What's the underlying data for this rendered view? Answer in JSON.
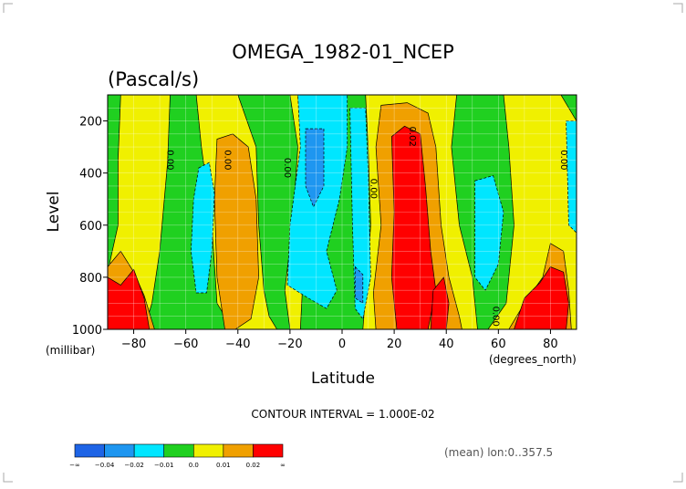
{
  "chart_data": {
    "type": "heatmap",
    "title": "OMEGA_1982-01_NCEP",
    "subtitle": "(Pascal/s)",
    "xlabel": "Latitude",
    "ylabel": "Level",
    "x_unit_label": "(degrees_north)",
    "y_unit_label": "(millibar)",
    "xlim": [
      -90,
      90
    ],
    "ylim": [
      1000,
      100
    ],
    "x_ticks": [
      -80,
      -60,
      -40,
      -20,
      0,
      20,
      40,
      60,
      80
    ],
    "y_ticks": [
      200,
      400,
      600,
      800,
      1000
    ],
    "grid": true,
    "contour_interval_text": "CONTOUR INTERVAL = 1.000E-02",
    "footnote": "(mean) lon:0..357.5",
    "colorbar": {
      "labels": [
        "-∞",
        "-0.04",
        "-0.02",
        "-0.01",
        "0.0",
        "0.01",
        "0.02",
        "∞"
      ],
      "colors": [
        "#1e64e6",
        "#1e96f0",
        "#00e6ff",
        "#20d020",
        "#f0f000",
        "#f0a000",
        "#ff0000"
      ]
    },
    "contour_labels": [
      {
        "text": "0.00",
        "x": -67,
        "y": 350
      },
      {
        "text": "0.00",
        "x": -45,
        "y": 350
      },
      {
        "text": "0.00",
        "x": -22,
        "y": 380
      },
      {
        "text": "0.00",
        "x": 11,
        "y": 460
      },
      {
        "text": "0.02",
        "x": 26,
        "y": 260
      },
      {
        "text": "0.00",
        "x": 84,
        "y": 350
      },
      {
        "text": "0.00",
        "x": 58,
        "y": 950
      }
    ],
    "regions": [
      {
        "level": "0.0",
        "color": "#20d020",
        "points": [
          [
            -90,
            100
          ],
          [
            90,
            100
          ],
          [
            90,
            1000
          ],
          [
            -90,
            1000
          ]
        ]
      },
      {
        "level": "0.01",
        "color": "#f0f000",
        "points": [
          [
            -85,
            100
          ],
          [
            -66,
            100
          ],
          [
            -67,
            360
          ],
          [
            -70,
            700
          ],
          [
            -73,
            900
          ],
          [
            -76,
            1000
          ],
          [
            -90,
            1000
          ],
          [
            -90,
            780
          ],
          [
            -86,
            600
          ],
          [
            -86,
            350
          ]
        ]
      },
      {
        "level": "0.01",
        "color": "#f0f000",
        "points": [
          [
            -56,
            100
          ],
          [
            -40,
            100
          ],
          [
            -33,
            300
          ],
          [
            -32,
            600
          ],
          [
            -30,
            850
          ],
          [
            -28,
            950
          ],
          [
            -25,
            1000
          ],
          [
            -42,
            1000
          ],
          [
            -48,
            900
          ],
          [
            -50,
            600
          ],
          [
            -54,
            300
          ]
        ]
      },
      {
        "level": "0.01",
        "color": "#f0f000",
        "points": [
          [
            -20,
            100
          ],
          [
            -17,
            300
          ],
          [
            -19,
            600
          ],
          [
            -22,
            850
          ],
          [
            -20,
            1000
          ],
          [
            -16,
            1000
          ],
          [
            -14,
            600
          ],
          [
            -15,
            300
          ],
          [
            -17,
            100
          ]
        ]
      },
      {
        "level": "0.01",
        "color": "#f0f000",
        "points": [
          [
            9,
            100
          ],
          [
            44,
            100
          ],
          [
            42,
            300
          ],
          [
            45,
            600
          ],
          [
            50,
            800
          ],
          [
            52,
            1000
          ],
          [
            8,
            1000
          ],
          [
            11,
            600
          ],
          [
            10,
            300
          ]
        ]
      },
      {
        "level": "0.01",
        "color": "#f0f000",
        "points": [
          [
            62,
            100
          ],
          [
            84,
            100
          ],
          [
            90,
            200
          ],
          [
            90,
            1000
          ],
          [
            56,
            1000
          ],
          [
            63,
            900
          ],
          [
            66,
            600
          ],
          [
            64,
            300
          ]
        ]
      },
      {
        "level": "0.02",
        "color": "#f0a000",
        "points": [
          [
            -90,
            760
          ],
          [
            -85,
            700
          ],
          [
            -80,
            780
          ],
          [
            -76,
            870
          ],
          [
            -72,
            1000
          ],
          [
            -90,
            1000
          ]
        ]
      },
      {
        "level": "0.02",
        "color": "#f0a000",
        "points": [
          [
            -48,
            270
          ],
          [
            -42,
            250
          ],
          [
            -36,
            300
          ],
          [
            -33,
            500
          ],
          [
            -32,
            800
          ],
          [
            -35,
            960
          ],
          [
            -41,
            1000
          ],
          [
            -45,
            1000
          ],
          [
            -48,
            800
          ],
          [
            -49,
            500
          ]
        ]
      },
      {
        "level": "0.02",
        "color": "#f0a000",
        "points": [
          [
            15,
            140
          ],
          [
            25,
            130
          ],
          [
            33,
            170
          ],
          [
            36,
            300
          ],
          [
            38,
            600
          ],
          [
            41,
            800
          ],
          [
            45,
            950
          ],
          [
            46,
            1000
          ],
          [
            13,
            1000
          ],
          [
            12,
            860
          ],
          [
            15,
            600
          ],
          [
            13,
            300
          ]
        ]
      },
      {
        "level": "0.02",
        "color": "#f0a000",
        "points": [
          [
            80,
            670
          ],
          [
            85,
            700
          ],
          [
            87,
            850
          ],
          [
            88,
            1000
          ],
          [
            64,
            1000
          ],
          [
            70,
            900
          ],
          [
            77,
            800
          ]
        ]
      },
      {
        "level": "0.03",
        "color": "#ff0000",
        "points": [
          [
            -90,
            800
          ],
          [
            -85,
            830
          ],
          [
            -80,
            770
          ],
          [
            -76,
            880
          ],
          [
            -74,
            1000
          ],
          [
            -90,
            1000
          ]
        ]
      },
      {
        "level": "0.03",
        "color": "#ff0000",
        "points": [
          [
            19,
            260
          ],
          [
            24,
            220
          ],
          [
            30,
            250
          ],
          [
            32,
            450
          ],
          [
            34,
            700
          ],
          [
            36,
            850
          ],
          [
            33,
            1000
          ],
          [
            21,
            1000
          ],
          [
            19,
            800
          ],
          [
            20,
            550
          ]
        ]
      },
      {
        "level": "0.03",
        "color": "#ff0000",
        "points": [
          [
            35,
            850
          ],
          [
            39,
            800
          ],
          [
            41,
            900
          ],
          [
            40,
            1000
          ],
          [
            34,
            1000
          ]
        ]
      },
      {
        "level": "0.03",
        "color": "#ff0000",
        "points": [
          [
            80,
            760
          ],
          [
            85,
            780
          ],
          [
            87,
            900
          ],
          [
            86,
            1000
          ],
          [
            66,
            1000
          ],
          [
            70,
            880
          ],
          [
            76,
            820
          ]
        ]
      },
      {
        "level": "-0.01",
        "color": "#00e6ff",
        "points": [
          [
            -55,
            380
          ],
          [
            -51,
            360
          ],
          [
            -49,
            480
          ],
          [
            -50,
            700
          ],
          [
            -52,
            860
          ],
          [
            -56,
            860
          ],
          [
            -58,
            700
          ],
          [
            -57,
            500
          ]
        ]
      },
      {
        "level": "-0.01",
        "color": "#00e6ff",
        "points": [
          [
            -17,
            100
          ],
          [
            2,
            100
          ],
          [
            2,
            300
          ],
          [
            -1,
            500
          ],
          [
            -6,
            700
          ],
          [
            -2,
            850
          ],
          [
            -6,
            920
          ],
          [
            -13,
            880
          ],
          [
            -21,
            830
          ],
          [
            -20,
            600
          ],
          [
            -16,
            300
          ]
        ]
      },
      {
        "level": "-0.01",
        "color": "#00e6ff",
        "points": [
          [
            3,
            150
          ],
          [
            9,
            150
          ],
          [
            10,
            400
          ],
          [
            11,
            800
          ],
          [
            8,
            960
          ],
          [
            5,
            920
          ],
          [
            4,
            600
          ]
        ]
      },
      {
        "level": "-0.01",
        "color": "#00e6ff",
        "points": [
          [
            51,
            430
          ],
          [
            58,
            410
          ],
          [
            62,
            550
          ],
          [
            60,
            750
          ],
          [
            55,
            850
          ],
          [
            51,
            800
          ]
        ]
      },
      {
        "level": "-0.01",
        "color": "#00e6ff",
        "points": [
          [
            86,
            200
          ],
          [
            90,
            200
          ],
          [
            90,
            630
          ],
          [
            87,
            600
          ]
        ]
      },
      {
        "level": "-0.02",
        "color": "#1e96f0",
        "points": [
          [
            -14,
            230
          ],
          [
            -7,
            230
          ],
          [
            -7,
            450
          ],
          [
            -11,
            530
          ],
          [
            -14,
            450
          ]
        ]
      },
      {
        "level": "-0.02",
        "color": "#1e96f0",
        "points": [
          [
            5,
            760
          ],
          [
            8,
            790
          ],
          [
            8,
            900
          ],
          [
            5,
            880
          ]
        ]
      }
    ]
  }
}
